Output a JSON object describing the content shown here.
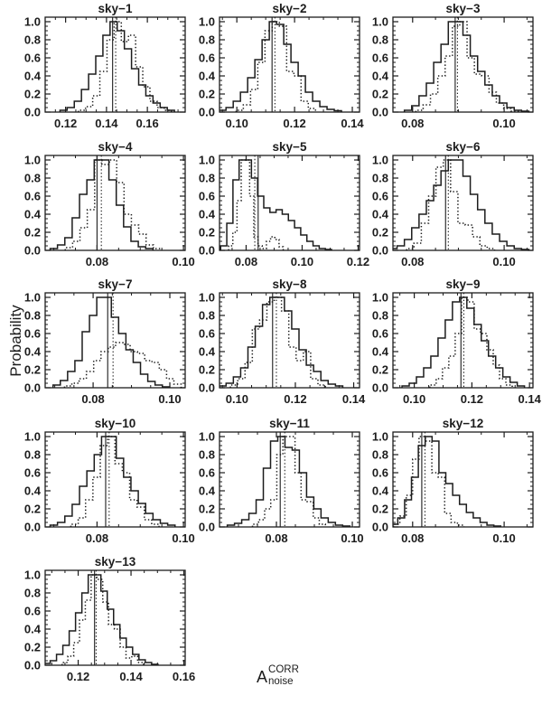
{
  "figure": {
    "ink": "#1c1c1c",
    "background": "#ffffff",
    "y_axis_label": "Probability",
    "x_axis_label": {
      "base": "A",
      "sup": "CORR",
      "sub": "noise"
    },
    "y_ticks": {
      "values": [
        0.0,
        0.2,
        0.4,
        0.6,
        0.8,
        1.0
      ],
      "labels": [
        "0.0",
        "0.2",
        "0.4",
        "0.6",
        "0.8",
        "1.0"
      ],
      "minor_step": 0.05
    },
    "ylim": [
      0,
      1.05
    ]
  },
  "chart_data": [
    {
      "type": "histogram-step",
      "title": "sky−1",
      "xlim": [
        0.11,
        0.1785
      ],
      "xticks": {
        "values": [
          0.12,
          0.14,
          0.16
        ],
        "labels": [
          "0.12",
          "0.14",
          "0.16"
        ],
        "minor_step": 0.005
      },
      "vline_solid": 0.143,
      "vline_dotted": 0.1445,
      "solid": {
        "x0": 0.119,
        "dx": 0.0035,
        "values": [
          0.02,
          0.05,
          0.12,
          0.25,
          0.42,
          0.62,
          0.85,
          1.0,
          0.9,
          0.7,
          0.48,
          0.3,
          0.18,
          0.1,
          0.05,
          0.02
        ]
      },
      "dotted": {
        "x0": 0.128,
        "dx": 0.0035,
        "values": [
          0.02,
          0.06,
          0.18,
          0.45,
          0.8,
          1.0,
          0.78,
          0.85,
          0.5,
          0.28,
          0.12,
          0.05,
          0.02
        ]
      }
    },
    {
      "type": "histogram-step",
      "title": "sky−2",
      "xlim": [
        0.094,
        0.1425
      ],
      "xticks": {
        "values": [
          0.1,
          0.12,
          0.14
        ],
        "labels": [
          "0.10",
          "0.12",
          "0.14"
        ],
        "minor_step": 0.005
      },
      "vline_solid": 0.1122,
      "vline_dotted": 0.1132,
      "solid": {
        "x0": 0.095,
        "dx": 0.0025,
        "values": [
          0.02,
          0.05,
          0.12,
          0.22,
          0.38,
          0.58,
          0.8,
          1.0,
          0.97,
          0.75,
          0.55,
          0.4,
          0.22,
          0.12,
          0.06,
          0.03,
          0.015
        ]
      },
      "dotted": {
        "x0": 0.101,
        "dx": 0.0025,
        "values": [
          0.02,
          0.08,
          0.25,
          0.55,
          0.9,
          1.0,
          0.95,
          0.45,
          0.4,
          0.12,
          0.04
        ]
      }
    },
    {
      "type": "histogram-step",
      "title": "sky−3",
      "xlim": [
        0.0757,
        0.1063
      ],
      "xticks": {
        "values": [
          0.08,
          0.1
        ],
        "labels": [
          "0.08",
          "0.10"
        ],
        "minor_step": 0.005
      },
      "vline_solid": 0.0893,
      "vline_dotted": 0.0898,
      "solid": {
        "x0": 0.079,
        "dx": 0.0016,
        "values": [
          0.02,
          0.07,
          0.18,
          0.32,
          0.55,
          0.75,
          1.0,
          1.0,
          0.85,
          0.62,
          0.45,
          0.3,
          0.18,
          0.1,
          0.05,
          0.02,
          0.01
        ]
      },
      "dotted": {
        "x0": 0.0815,
        "dx": 0.0016,
        "values": [
          0.02,
          0.08,
          0.2,
          0.4,
          0.62,
          0.95,
          1.0,
          0.6,
          0.42,
          0.4,
          0.22,
          0.1,
          0.04,
          0.01
        ]
      }
    },
    {
      "type": "histogram-step",
      "title": "sky−4",
      "xlim": [
        0.068,
        0.1004
      ],
      "xticks": {
        "values": [
          0.08,
          0.1
        ],
        "labels": [
          "0.08",
          "0.10"
        ],
        "minor_step": 0.005
      },
      "vline_solid": 0.08,
      "vline_dotted": 0.081,
      "solid": {
        "x0": 0.07,
        "dx": 0.0017,
        "values": [
          0.02,
          0.06,
          0.14,
          0.36,
          0.62,
          0.78,
          1.0,
          1.0,
          0.78,
          0.5,
          0.26,
          0.1,
          0.04,
          0.02
        ]
      },
      "dotted": {
        "x0": 0.0735,
        "dx": 0.0017,
        "values": [
          0.03,
          0.1,
          0.25,
          0.45,
          1.0,
          0.95,
          1.0,
          0.75,
          0.4,
          0.28,
          0.18,
          0.06,
          0.02
        ]
      }
    },
    {
      "type": "histogram-step",
      "title": "sky−5",
      "xlim": [
        0.0705,
        0.1205
      ],
      "xticks": {
        "values": [
          0.08,
          0.1,
          0.12
        ],
        "labels": [
          "0.08",
          "0.10",
          "0.12"
        ],
        "minor_step": 0.005
      },
      "vline_solid": 0.0843,
      "vline_dotted": 0.0831,
      "solid": {
        "x0": 0.072,
        "dx": 0.0022,
        "values": [
          0.05,
          0.3,
          0.78,
          1.0,
          1.0,
          0.8,
          0.6,
          0.47,
          0.42,
          0.45,
          0.4,
          0.33,
          0.25,
          0.17,
          0.1,
          0.05,
          0.02,
          0.01
        ]
      },
      "dotted": {
        "x0": 0.0745,
        "dx": 0.0015,
        "values": [
          0.05,
          0.2,
          0.55,
          1.0,
          1.0,
          0.6,
          0.15,
          0.05,
          0.02,
          0.1,
          0.15,
          0.12,
          0.04
        ]
      }
    },
    {
      "type": "histogram-step",
      "title": "sky−6",
      "xlim": [
        0.0757,
        0.1063
      ],
      "xticks": {
        "values": [
          0.08,
          0.1
        ],
        "labels": [
          "0.08",
          "0.10"
        ],
        "minor_step": 0.005
      },
      "vline_solid": 0.0872,
      "vline_dotted": 0.0878,
      "solid": {
        "x0": 0.0758,
        "dx": 0.0016,
        "values": [
          0.02,
          0.05,
          0.12,
          0.25,
          0.4,
          0.55,
          0.72,
          0.88,
          1.0,
          1.0,
          0.82,
          0.62,
          0.45,
          0.3,
          0.18,
          0.1,
          0.05,
          0.02,
          0.01
        ]
      },
      "dotted": {
        "x0": 0.0795,
        "dx": 0.0016,
        "values": [
          0.02,
          0.08,
          0.3,
          0.6,
          0.92,
          1.0,
          0.65,
          0.3,
          0.28,
          0.15,
          0.05,
          0.02
        ]
      }
    },
    {
      "type": "histogram-step",
      "title": "sky−7",
      "xlim": [
        0.0675,
        0.104
      ],
      "xticks": {
        "values": [
          0.08,
          0.1
        ],
        "labels": [
          "0.08",
          "0.10"
        ],
        "minor_step": 0.005
      },
      "vline_solid": 0.0838,
      "vline_dotted": 0.0852,
      "solid": {
        "x0": 0.0705,
        "dx": 0.0019,
        "values": [
          0.03,
          0.08,
          0.18,
          0.3,
          0.62,
          0.8,
          1.0,
          1.0,
          0.78,
          0.6,
          0.42,
          0.28,
          0.15,
          0.07,
          0.03,
          0.01
        ]
      },
      "dotted": {
        "x0": 0.0735,
        "dx": 0.0019,
        "values": [
          0.02,
          0.05,
          0.1,
          0.18,
          0.3,
          0.4,
          0.45,
          0.5,
          0.48,
          0.4,
          0.38,
          0.3,
          0.28,
          0.2,
          0.1,
          0.04
        ]
      }
    },
    {
      "type": "histogram-step",
      "title": "sky−8",
      "xlim": [
        0.094,
        0.142
      ],
      "xticks": {
        "values": [
          0.1,
          0.12,
          0.14
        ],
        "labels": [
          "0.10",
          "0.12",
          "0.14"
        ],
        "minor_step": 0.005
      },
      "vline_solid": 0.1122,
      "vline_dotted": 0.1135,
      "solid": {
        "x0": 0.095,
        "dx": 0.0025,
        "values": [
          0.02,
          0.05,
          0.12,
          0.22,
          0.45,
          0.68,
          0.92,
          1.0,
          1.0,
          0.85,
          0.65,
          0.42,
          0.25,
          0.18,
          0.08,
          0.04,
          0.02
        ]
      },
      "dotted": {
        "x0": 0.099,
        "dx": 0.0025,
        "values": [
          0.03,
          0.1,
          0.28,
          0.65,
          0.75,
          0.95,
          1.0,
          0.85,
          0.45,
          0.3,
          0.4,
          0.1,
          0.03
        ]
      }
    },
    {
      "type": "histogram-step",
      "title": "sky−9",
      "xlim": [
        0.0926,
        0.1412
      ],
      "xticks": {
        "values": [
          0.1,
          0.12,
          0.14
        ],
        "labels": [
          "0.10",
          "0.12",
          "0.14"
        ],
        "minor_step": 0.005
      },
      "vline_solid": 0.1162,
      "vline_dotted": 0.1172,
      "solid": {
        "x0": 0.097,
        "dx": 0.0025,
        "values": [
          0.02,
          0.05,
          0.12,
          0.22,
          0.35,
          0.55,
          0.75,
          0.95,
          1.0,
          0.88,
          0.7,
          0.52,
          0.35,
          0.22,
          0.12,
          0.06,
          0.02
        ]
      },
      "dotted": {
        "x0": 0.1065,
        "dx": 0.0022,
        "values": [
          0.03,
          0.1,
          0.22,
          0.35,
          0.6,
          1.0,
          0.95,
          0.65,
          0.6,
          0.42,
          0.25,
          0.1,
          0.03
        ]
      }
    },
    {
      "type": "histogram-step",
      "title": "sky−10",
      "xlim": [
        0.068,
        0.1004
      ],
      "xticks": {
        "values": [
          0.08,
          0.1
        ],
        "labels": [
          "0.08",
          "0.10"
        ],
        "minor_step": 0.005
      },
      "vline_solid": 0.082,
      "vline_dotted": 0.0828,
      "solid": {
        "x0": 0.07,
        "dx": 0.0017,
        "values": [
          0.02,
          0.05,
          0.12,
          0.25,
          0.45,
          0.62,
          0.8,
          1.0,
          1.0,
          0.76,
          0.55,
          0.4,
          0.26,
          0.15,
          0.08,
          0.04,
          0.02
        ]
      },
      "dotted": {
        "x0": 0.0748,
        "dx": 0.0017,
        "values": [
          0.03,
          0.1,
          0.3,
          0.55,
          0.9,
          1.0,
          0.7,
          0.6,
          0.3,
          0.22,
          0.08,
          0.03
        ]
      }
    },
    {
      "type": "histogram-step",
      "title": "sky−11",
      "xlim": [
        0.065,
        0.1019
      ],
      "xticks": {
        "values": [
          0.08,
          0.1
        ],
        "labels": [
          "0.08",
          "0.10"
        ],
        "minor_step": 0.005
      },
      "vline_solid": 0.081,
      "vline_dotted": 0.0822,
      "solid": {
        "x0": 0.068,
        "dx": 0.0019,
        "values": [
          0.02,
          0.04,
          0.08,
          0.15,
          0.3,
          0.65,
          0.95,
          1.0,
          0.88,
          0.85,
          0.6,
          0.33,
          0.2,
          0.1,
          0.05,
          0.02,
          0.01
        ]
      },
      "dotted": {
        "x0": 0.0745,
        "dx": 0.0016,
        "values": [
          0.03,
          0.08,
          0.2,
          0.3,
          0.8,
          1.0,
          1.0,
          0.6,
          0.3,
          0.28,
          0.1,
          0.03
        ]
      }
    },
    {
      "type": "histogram-step",
      "title": "sky−12",
      "xlim": [
        0.0757,
        0.1063
      ],
      "xticks": {
        "values": [
          0.08,
          0.1
        ],
        "labels": [
          "0.08",
          "0.10"
        ],
        "minor_step": 0.005
      },
      "vline_solid": 0.082,
      "vline_dotted": 0.0827,
      "solid": {
        "x0": 0.076,
        "dx": 0.0015,
        "values": [
          0.03,
          0.1,
          0.3,
          0.55,
          0.9,
          1.0,
          0.95,
          0.6,
          0.48,
          0.35,
          0.25,
          0.16,
          0.1,
          0.05,
          0.02,
          0.01
        ]
      },
      "dotted": {
        "x0": 0.0765,
        "dx": 0.0014,
        "values": [
          0.03,
          0.12,
          0.35,
          0.75,
          1.0,
          0.95,
          0.6,
          0.55,
          0.15,
          0.05,
          0.02
        ]
      }
    },
    {
      "type": "histogram-step",
      "title": "sky−13",
      "xlim": [
        0.1075,
        0.1605
      ],
      "xticks": {
        "values": [
          0.12,
          0.14,
          0.16
        ],
        "labels": [
          "0.12",
          "0.14",
          "0.16"
        ],
        "minor_step": 0.005
      },
      "vline_solid": 0.1262,
      "vline_dotted": 0.1268,
      "solid": {
        "x0": 0.1082,
        "dx": 0.0024,
        "values": [
          0.02,
          0.05,
          0.12,
          0.22,
          0.38,
          0.58,
          0.8,
          1.0,
          1.0,
          0.82,
          0.62,
          0.45,
          0.3,
          0.2,
          0.12,
          0.06,
          0.03,
          0.01
        ]
      },
      "dotted": {
        "x0": 0.115,
        "dx": 0.0022,
        "values": [
          0.03,
          0.1,
          0.25,
          0.5,
          0.72,
          1.0,
          0.95,
          0.7,
          0.45,
          0.4,
          0.2,
          0.08,
          0.1,
          0.03
        ]
      }
    }
  ]
}
